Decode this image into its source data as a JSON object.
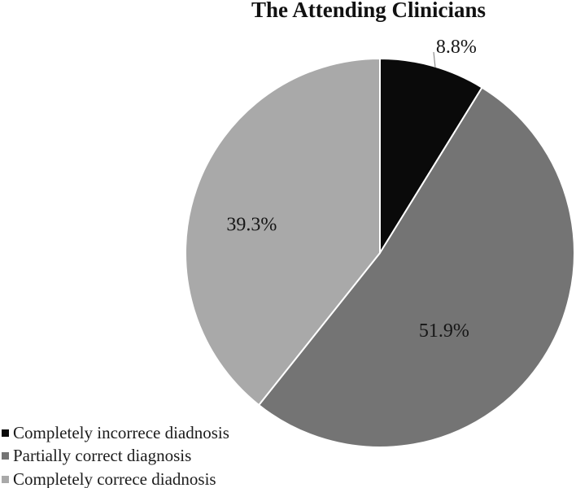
{
  "chart_data": {
    "type": "pie",
    "title": "The Attending Clinicians",
    "background": "#ffffff",
    "separator_color": "#ffffff",
    "label_color": "#161616",
    "start_angle_deg": 0,
    "direction": "clockwise",
    "legend_position": "bottom-left",
    "slices": [
      {
        "label": "Completely incorrece diadnosis",
        "value": 8.8,
        "display": "8.8%",
        "color": "#0a0a0a"
      },
      {
        "label": "Partially correct diagnosis",
        "value": 51.9,
        "display": "51.9%",
        "color": "#747474"
      },
      {
        "label": "Completely correce diadnosis",
        "value": 39.3,
        "display": "39.3%",
        "color": "#a9a9a9"
      }
    ]
  }
}
